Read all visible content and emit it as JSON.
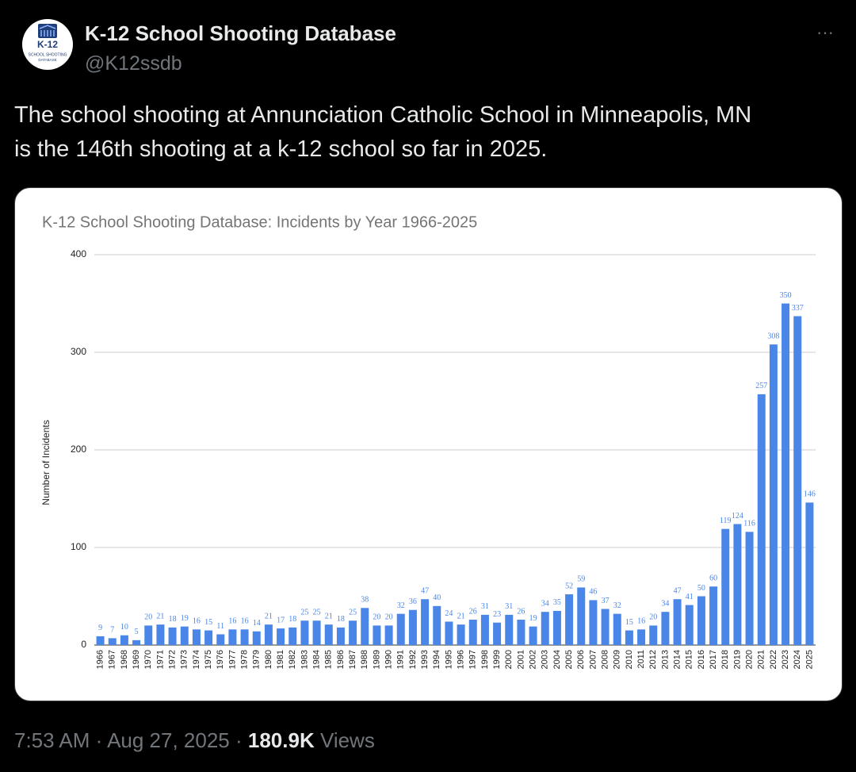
{
  "tweet": {
    "author_name": "K-12 School Shooting Database",
    "handle": "@K12ssdb",
    "avatar_texts": [
      "K-12",
      "SCHOOL SHOOTING",
      "DATABASE"
    ],
    "more": "···",
    "text_lines": [
      "The school shooting at Annunciation Catholic School in Minneapolis, MN",
      "is the 146th shooting at a k-12 school so far in 2025."
    ],
    "timestamp": "7:53 AM · Aug 27, 2025 ·",
    "views_count": "180.9K",
    "views_label": "Views"
  },
  "chart_data": {
    "type": "bar",
    "title": "K-12 School Shooting Database: Incidents by Year 1966-2025",
    "y_label": "Number of Incidents",
    "categories": [
      "1966",
      "1967",
      "1968",
      "1969",
      "1970",
      "1971",
      "1972",
      "1973",
      "1974",
      "1975",
      "1976",
      "1977",
      "1978",
      "1979",
      "1980",
      "1981",
      "1982",
      "1983",
      "1984",
      "1985",
      "1986",
      "1987",
      "1988",
      "1989",
      "1990",
      "1991",
      "1992",
      "1993",
      "1994",
      "1995",
      "1996",
      "1997",
      "1998",
      "1999",
      "2000",
      "2001",
      "2002",
      "2003",
      "2004",
      "2005",
      "2006",
      "2007",
      "2008",
      "2009",
      "2010",
      "2011",
      "2012",
      "2013",
      "2014",
      "2015",
      "2016",
      "2017",
      "2018",
      "2019",
      "2020",
      "2021",
      "2022",
      "2023",
      "2024",
      "2025"
    ],
    "values": [
      9,
      7,
      10,
      5,
      20,
      21,
      18,
      19,
      16,
      15,
      11,
      16,
      16,
      14,
      21,
      17,
      18,
      25,
      25,
      21,
      18,
      25,
      38,
      20,
      20,
      32,
      36,
      47,
      40,
      24,
      21,
      26,
      31,
      23,
      31,
      26,
      19,
      34,
      35,
      52,
      59,
      46,
      37,
      32,
      15,
      16,
      20,
      34,
      47,
      41,
      50,
      60,
      119,
      124,
      116,
      257,
      308,
      350,
      337,
      146
    ],
    "color": "#4a86e8",
    "ylim": [
      0,
      400
    ],
    "yticks": [
      0,
      100,
      200,
      300,
      400
    ],
    "grid": true
  }
}
